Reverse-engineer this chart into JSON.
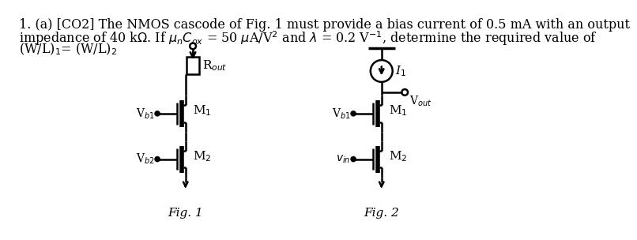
{
  "bg_color": "#ffffff",
  "text_color": "#000000",
  "line1": "1. (a) [CO2] The NMOS cascode of Fig. 1 must provide a bias current of 0.5 mA with an output",
  "line2_pre": "impedance of 40 k",
  "line2_mid1": ". If ",
  "line2_mid2": "C",
  "line2_mid3": " = 50 ",
  "line2_mid4": "A/V",
  "line2_mid5": " and ",
  "line2_mid6": " = 0.2 V",
  "line2_end": ", determine the required value of",
  "line3": "(W/L)₁= (W/L)₂",
  "fig1_label": "Fig. 1",
  "fig2_label": "Fig. 2",
  "lw": 1.8,
  "font_size": 11.5
}
